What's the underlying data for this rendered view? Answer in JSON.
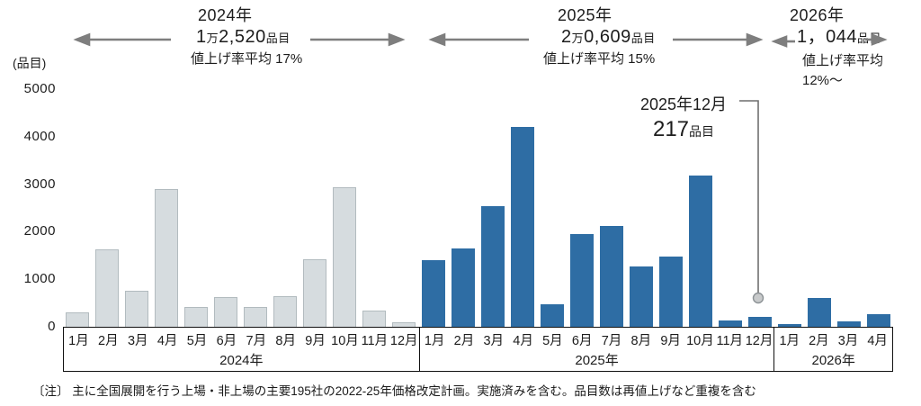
{
  "chart_data": {
    "type": "bar",
    "unit_label": "(品目)",
    "ylim": [
      0,
      5000
    ],
    "yticks": [
      5000,
      4000,
      3000,
      2000,
      1000,
      0
    ],
    "grid": false,
    "legend": false,
    "groups": [
      {
        "year": "2024年",
        "color": "#D6DCDF",
        "border": "#B2BBBF",
        "months": [
          "1月",
          "2月",
          "3月",
          "4月",
          "5月",
          "6月",
          "7月",
          "8月",
          "9月",
          "10月",
          "11月",
          "12月"
        ],
        "values": [
          300,
          1630,
          760,
          2900,
          420,
          620,
          410,
          650,
          1420,
          2940,
          340,
          90
        ]
      },
      {
        "year": "2025年",
        "color": "#2E6DA4",
        "border": "",
        "months": [
          "1月",
          "2月",
          "3月",
          "4月",
          "5月",
          "6月",
          "7月",
          "8月",
          "9月",
          "10月",
          "11月",
          "12月"
        ],
        "values": [
          1410,
          1650,
          2530,
          4200,
          470,
          1950,
          2120,
          1270,
          1480,
          3190,
          130,
          217
        ]
      },
      {
        "year": "2026年",
        "color": "#2E6DA4",
        "border": "",
        "months": [
          "1月",
          "2月",
          "3月",
          "4月"
        ],
        "values": [
          50,
          600,
          110,
          260
        ]
      }
    ],
    "range_headers": [
      {
        "year": "2024年",
        "big1": "1",
        "small1": "万",
        "big2": "2,520",
        "small2": "品目",
        "rate1": "値上げ率平均 17%",
        "rate2": ""
      },
      {
        "year": "2025年",
        "big1": "2",
        "small1": "万",
        "big2": "0,609",
        "small2": "品目",
        "rate1": "値上げ率平均 15%",
        "rate2": ""
      },
      {
        "year": "2026年",
        "big1": "",
        "small1": "",
        "big2": "1，044",
        "small2": "品目",
        "rate1": "値上げ率平均",
        "rate2": "12%～"
      }
    ],
    "annotation": {
      "label": "2025年12月",
      "value": "217",
      "unit": "品目"
    },
    "footnote": "〔注〕 主に全国展開を行う上場・非上場の主要195社の2022-25年価格改定計画。実施済みを含む。品目数は再値上げなど重複を含む"
  }
}
